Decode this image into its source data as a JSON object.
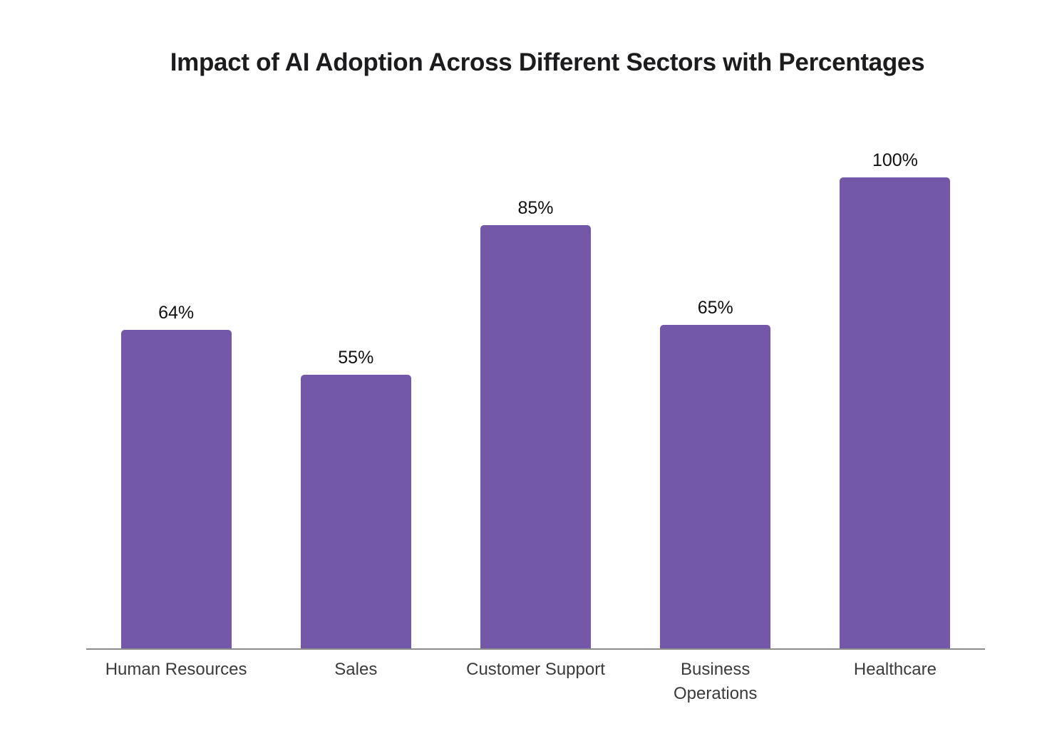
{
  "chart_data": {
    "type": "bar",
    "title": "Impact of AI Adoption Across Different Sectors with Percentages",
    "categories": [
      "Human Resources",
      "Sales",
      "Customer Support",
      "Business\nOperations",
      "Healthcare"
    ],
    "values": [
      64,
      55,
      85,
      65,
      100
    ],
    "value_labels": [
      "64%",
      "55%",
      "85%",
      "65%",
      "100%"
    ],
    "xlabel": "",
    "ylabel": "",
    "ylim": [
      0,
      100
    ],
    "grid": false,
    "legend": false,
    "bar_color": "#7357a9",
    "axis_line_color": "#8c8c8c",
    "title_color": "#1c1c1e",
    "value_label_color": "#111111",
    "tick_label_color": "#3b3b3b"
  }
}
